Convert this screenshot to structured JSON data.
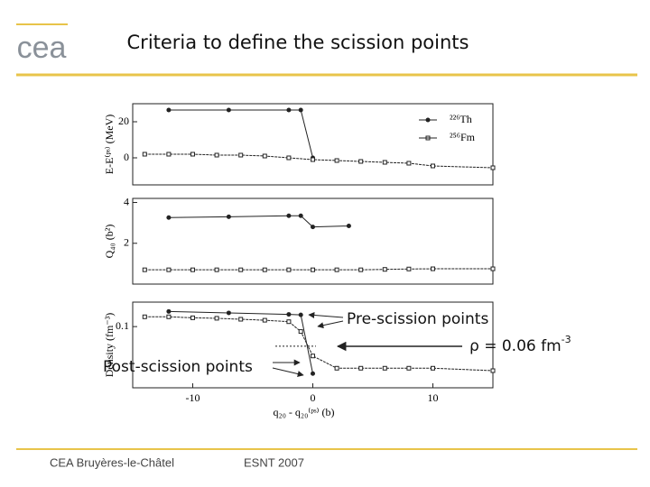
{
  "slide": {
    "logo": "cea",
    "title": "Criteria to define the scission points",
    "annotations": {
      "pre": "Pre-scission points",
      "post": "Post-scission points",
      "rho": "ρ = 0.06 fm",
      "rho_sup": "-3"
    },
    "footer_left": "CEA Bruyères-le-Châtel",
    "footer_center": "ESNT 2007"
  },
  "chart_data": [
    {
      "type": "line",
      "ylabel": "E-E⁽ᵖˢ⁾ (MeV)",
      "xlim": [
        -15,
        15
      ],
      "ylim": [
        -15,
        30
      ],
      "yticks": [
        0,
        20
      ],
      "legend": "upper right",
      "series": [
        {
          "name": "²²⁶Th",
          "color": "#222222",
          "marker": "circle",
          "x": [
            -12,
            -7,
            -2,
            -1,
            0
          ],
          "values": [
            26.5,
            26.5,
            26.5,
            26.5,
            0
          ]
        },
        {
          "name": "²⁵⁶Fm",
          "color": "#222222",
          "marker": "square",
          "x": [
            -14,
            -12,
            -10,
            -8,
            -6,
            -4,
            -2,
            0,
            2,
            4,
            6,
            8,
            10,
            15
          ],
          "values": [
            2,
            2,
            2,
            1.5,
            1.5,
            1,
            0,
            -1,
            -1.5,
            -2,
            -2.5,
            -3,
            -4.5,
            -5.5
          ]
        }
      ]
    },
    {
      "type": "line",
      "ylabel": "Q₄₀ (b²)",
      "xlim": [
        -15,
        15
      ],
      "ylim": [
        0,
        4.2
      ],
      "yticks": [
        2,
        4
      ],
      "series": [
        {
          "name": "²²⁶Th",
          "color": "#222222",
          "marker": "circle",
          "x": [
            -12,
            -7,
            -2,
            -1,
            0,
            3
          ],
          "values": [
            3.26,
            3.3,
            3.35,
            3.35,
            2.8,
            2.85
          ]
        },
        {
          "name": "²⁵⁶Fm",
          "color": "#222222",
          "marker": "square",
          "x": [
            -14,
            -12,
            -10,
            -8,
            -6,
            -4,
            -2,
            0,
            2,
            4,
            6,
            8,
            10,
            15
          ],
          "values": [
            0.7,
            0.7,
            0.7,
            0.7,
            0.7,
            0.7,
            0.7,
            0.7,
            0.7,
            0.7,
            0.72,
            0.74,
            0.75,
            0.75
          ]
        }
      ]
    },
    {
      "type": "line",
      "ylabel": "Density (fm⁻³)",
      "xlabel": "q₂₀ - q₂₀⁽ᵖˢ⁾ (b)",
      "xlim": [
        -15,
        15
      ],
      "xticks": [
        -10,
        0,
        10
      ],
      "ylim": [
        -0.025,
        0.15
      ],
      "yticks": [
        0.1
      ],
      "threshold": 0.06,
      "series": [
        {
          "name": "²²⁶Th",
          "color": "#222222",
          "marker": "circle",
          "x": [
            -12,
            -7,
            -2,
            -1,
            0
          ],
          "values": [
            0.131,
            0.128,
            0.125,
            0.124,
            0.004
          ]
        },
        {
          "name": "²⁵⁶Fm",
          "color": "#222222",
          "marker": "square",
          "x": [
            -14,
            -12,
            -10,
            -8,
            -6,
            -4,
            -2,
            -1,
            0,
            2,
            4,
            6,
            8,
            10,
            15
          ],
          "values": [
            0.12,
            0.12,
            0.118,
            0.117,
            0.115,
            0.113,
            0.11,
            0.09,
            0.04,
            0.015,
            0.015,
            0.015,
            0.015,
            0.015,
            0.01
          ]
        }
      ]
    }
  ]
}
